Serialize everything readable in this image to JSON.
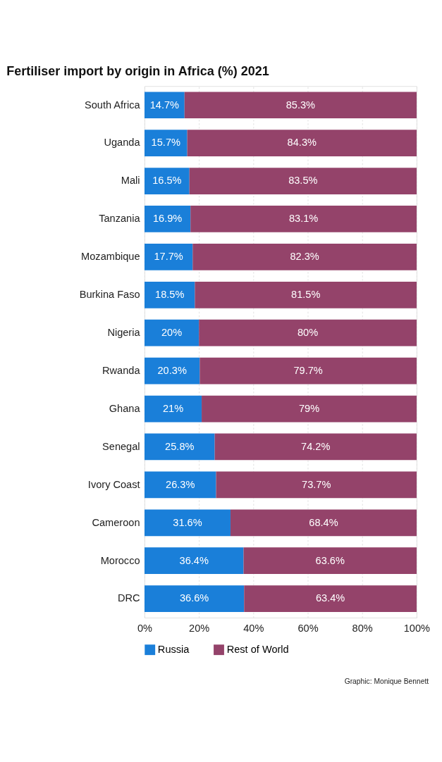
{
  "chart_data": {
    "type": "bar",
    "orientation": "horizontal",
    "stacked": true,
    "title": "Fertiliser import by origin in Africa (%) 2021",
    "categories": [
      "South Africa",
      "Uganda",
      "Mali",
      "Tanzania",
      "Mozambique",
      "Burkina Faso",
      "Nigeria",
      "Rwanda",
      "Ghana",
      "Senegal",
      "Ivory Coast",
      "Cameroon",
      "Morocco",
      "DRC"
    ],
    "series": [
      {
        "name": "Russia",
        "color": "#1a7fd9",
        "values": [
          14.7,
          15.7,
          16.5,
          16.9,
          17.7,
          18.5,
          20,
          20.3,
          21,
          25.8,
          26.3,
          31.6,
          36.4,
          36.6
        ],
        "value_labels": [
          "14.7%",
          "15.7%",
          "16.5%",
          "16.9%",
          "17.7%",
          "18.5%",
          "20%",
          "20.3%",
          "21%",
          "25.8%",
          "26.3%",
          "31.6%",
          "36.4%",
          "36.6%"
        ]
      },
      {
        "name": "Rest of World",
        "color": "#94436a",
        "values": [
          85.3,
          84.3,
          83.5,
          83.1,
          82.3,
          81.5,
          80,
          79.7,
          79,
          74.2,
          73.7,
          68.4,
          63.6,
          63.4
        ],
        "value_labels": [
          "85.3%",
          "84.3%",
          "83.5%",
          "83.1%",
          "82.3%",
          "81.5%",
          "80%",
          "79.7%",
          "79%",
          "74.2%",
          "73.7%",
          "68.4%",
          "63.6%",
          "63.4%"
        ]
      }
    ],
    "xlim": [
      0,
      100
    ],
    "xticks": [
      {
        "value": 0,
        "label": "0%"
      },
      {
        "value": 20,
        "label": "20%"
      },
      {
        "value": 40,
        "label": "40%"
      },
      {
        "value": 60,
        "label": "60%"
      },
      {
        "value": 80,
        "label": "80%"
      },
      {
        "value": 100,
        "label": "100%"
      }
    ],
    "grid": "x",
    "legend": "bottom",
    "annotations": [
      "Graphic: Monique Bennett"
    ]
  }
}
